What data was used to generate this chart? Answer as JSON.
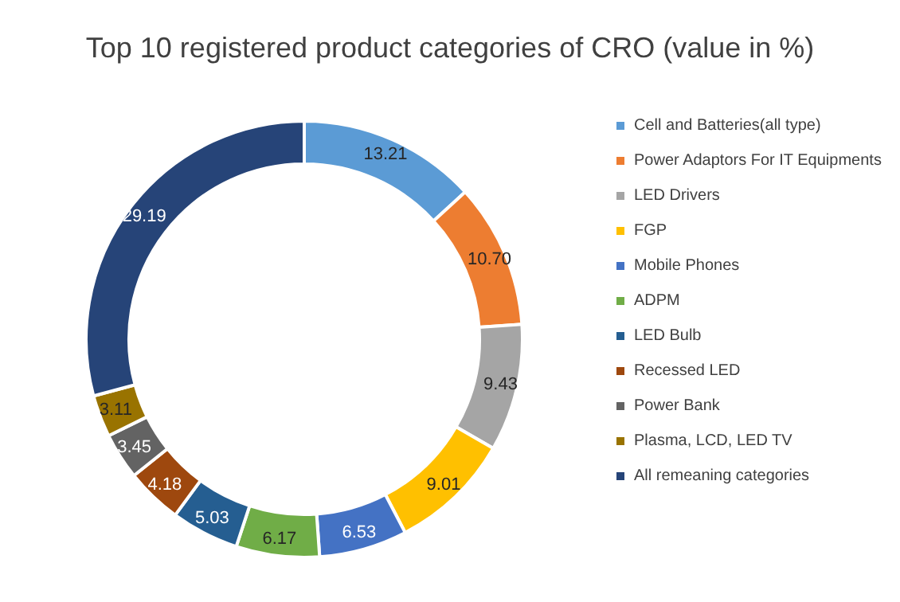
{
  "chart_data": {
    "type": "donut",
    "title": "Top 10 registered product categories of CRO (value in %)",
    "categories": [
      "Cell and Batteries(all type)",
      "Power Adaptors For IT Equipments",
      "LED Drivers",
      "FGP",
      "Mobile Phones",
      "ADPM",
      "LED Bulb",
      "Recessed LED",
      "Power Bank",
      "Plasma, LCD, LED TV",
      "All remeaning categories"
    ],
    "values": [
      13.21,
      10.7,
      9.43,
      9.01,
      6.53,
      6.17,
      5.03,
      4.18,
      3.45,
      3.11,
      29.19
    ],
    "value_labels": [
      "13.21",
      "10.70",
      "9.43",
      "9.01",
      "6.53",
      "6.17",
      "5.03",
      "4.18",
      "3.45",
      "3.11",
      "29.19"
    ],
    "colors": [
      "#5b9bd5",
      "#ed7d31",
      "#a5a5a5",
      "#ffc000",
      "#4472c4",
      "#70ad47",
      "#255e91",
      "#9e480e",
      "#636363",
      "#997300",
      "#264478"
    ],
    "legend": "right"
  }
}
